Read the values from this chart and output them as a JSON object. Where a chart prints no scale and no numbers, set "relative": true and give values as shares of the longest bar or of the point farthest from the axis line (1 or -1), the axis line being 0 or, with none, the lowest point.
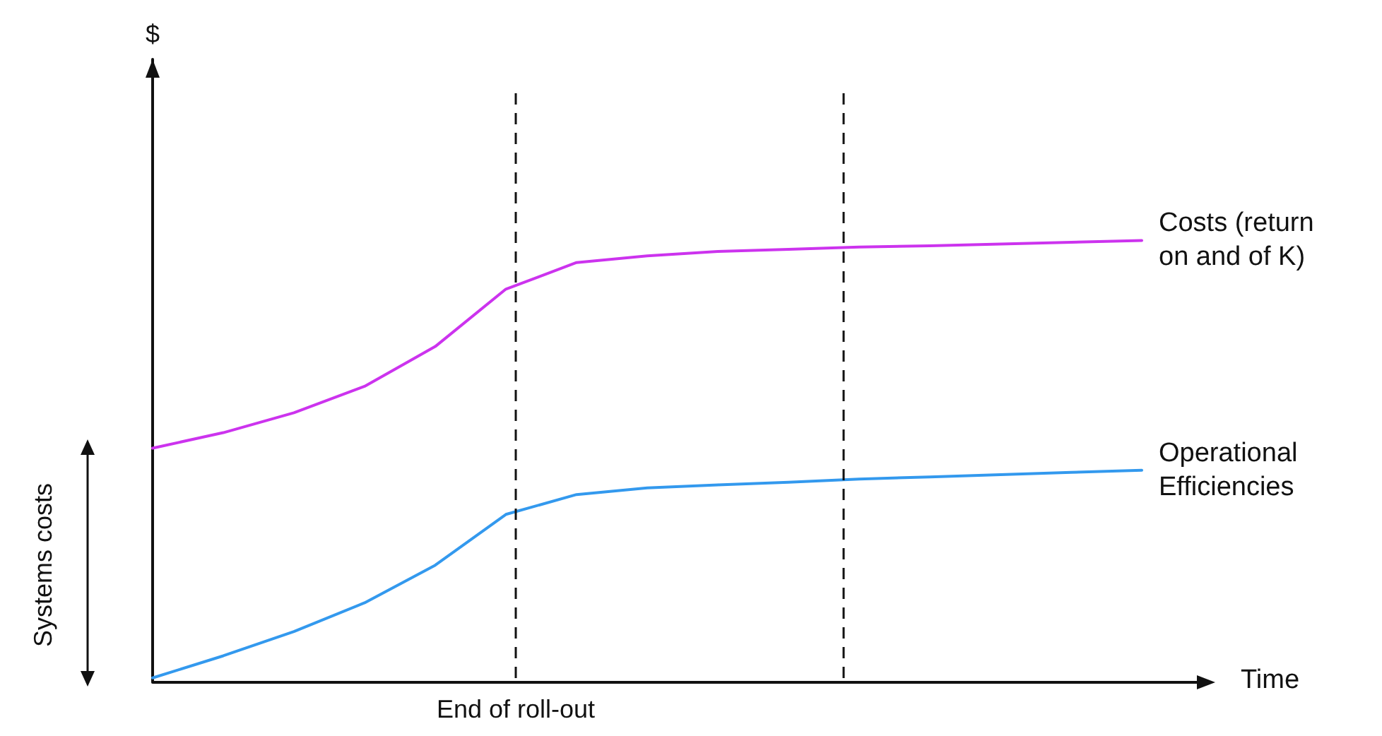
{
  "chart_data": {
    "type": "line",
    "relative": true,
    "xlabel": "Time",
    "categories": [
      null,
      null,
      null,
      null,
      null,
      null,
      null,
      null,
      null,
      null,
      null,
      null,
      null,
      null,
      null
    ],
    "series": [
      {
        "name": "Costs (return on and of K)",
        "color": "#cc33ee",
        "values": [
          0.53,
          0.565,
          0.61,
          0.67,
          0.76,
          0.89,
          0.95,
          0.965,
          0.975,
          0.98,
          0.985,
          0.988,
          0.992,
          0.996,
          1
        ]
      },
      {
        "name": "Operational Efficiencies",
        "color": "#3399ee",
        "values": [
          0.01,
          0.06,
          0.115,
          0.18,
          0.265,
          0.38,
          0.425,
          0.44,
          0.447,
          0.453,
          0.46,
          0.465,
          0.47,
          0.475,
          0.48
        ]
      }
    ],
    "annotations": [
      "End of roll-out",
      "Systems costs",
      "$"
    ],
    "marker": "none",
    "line_style": "solid",
    "legend": false,
    "grid": false
  }
}
